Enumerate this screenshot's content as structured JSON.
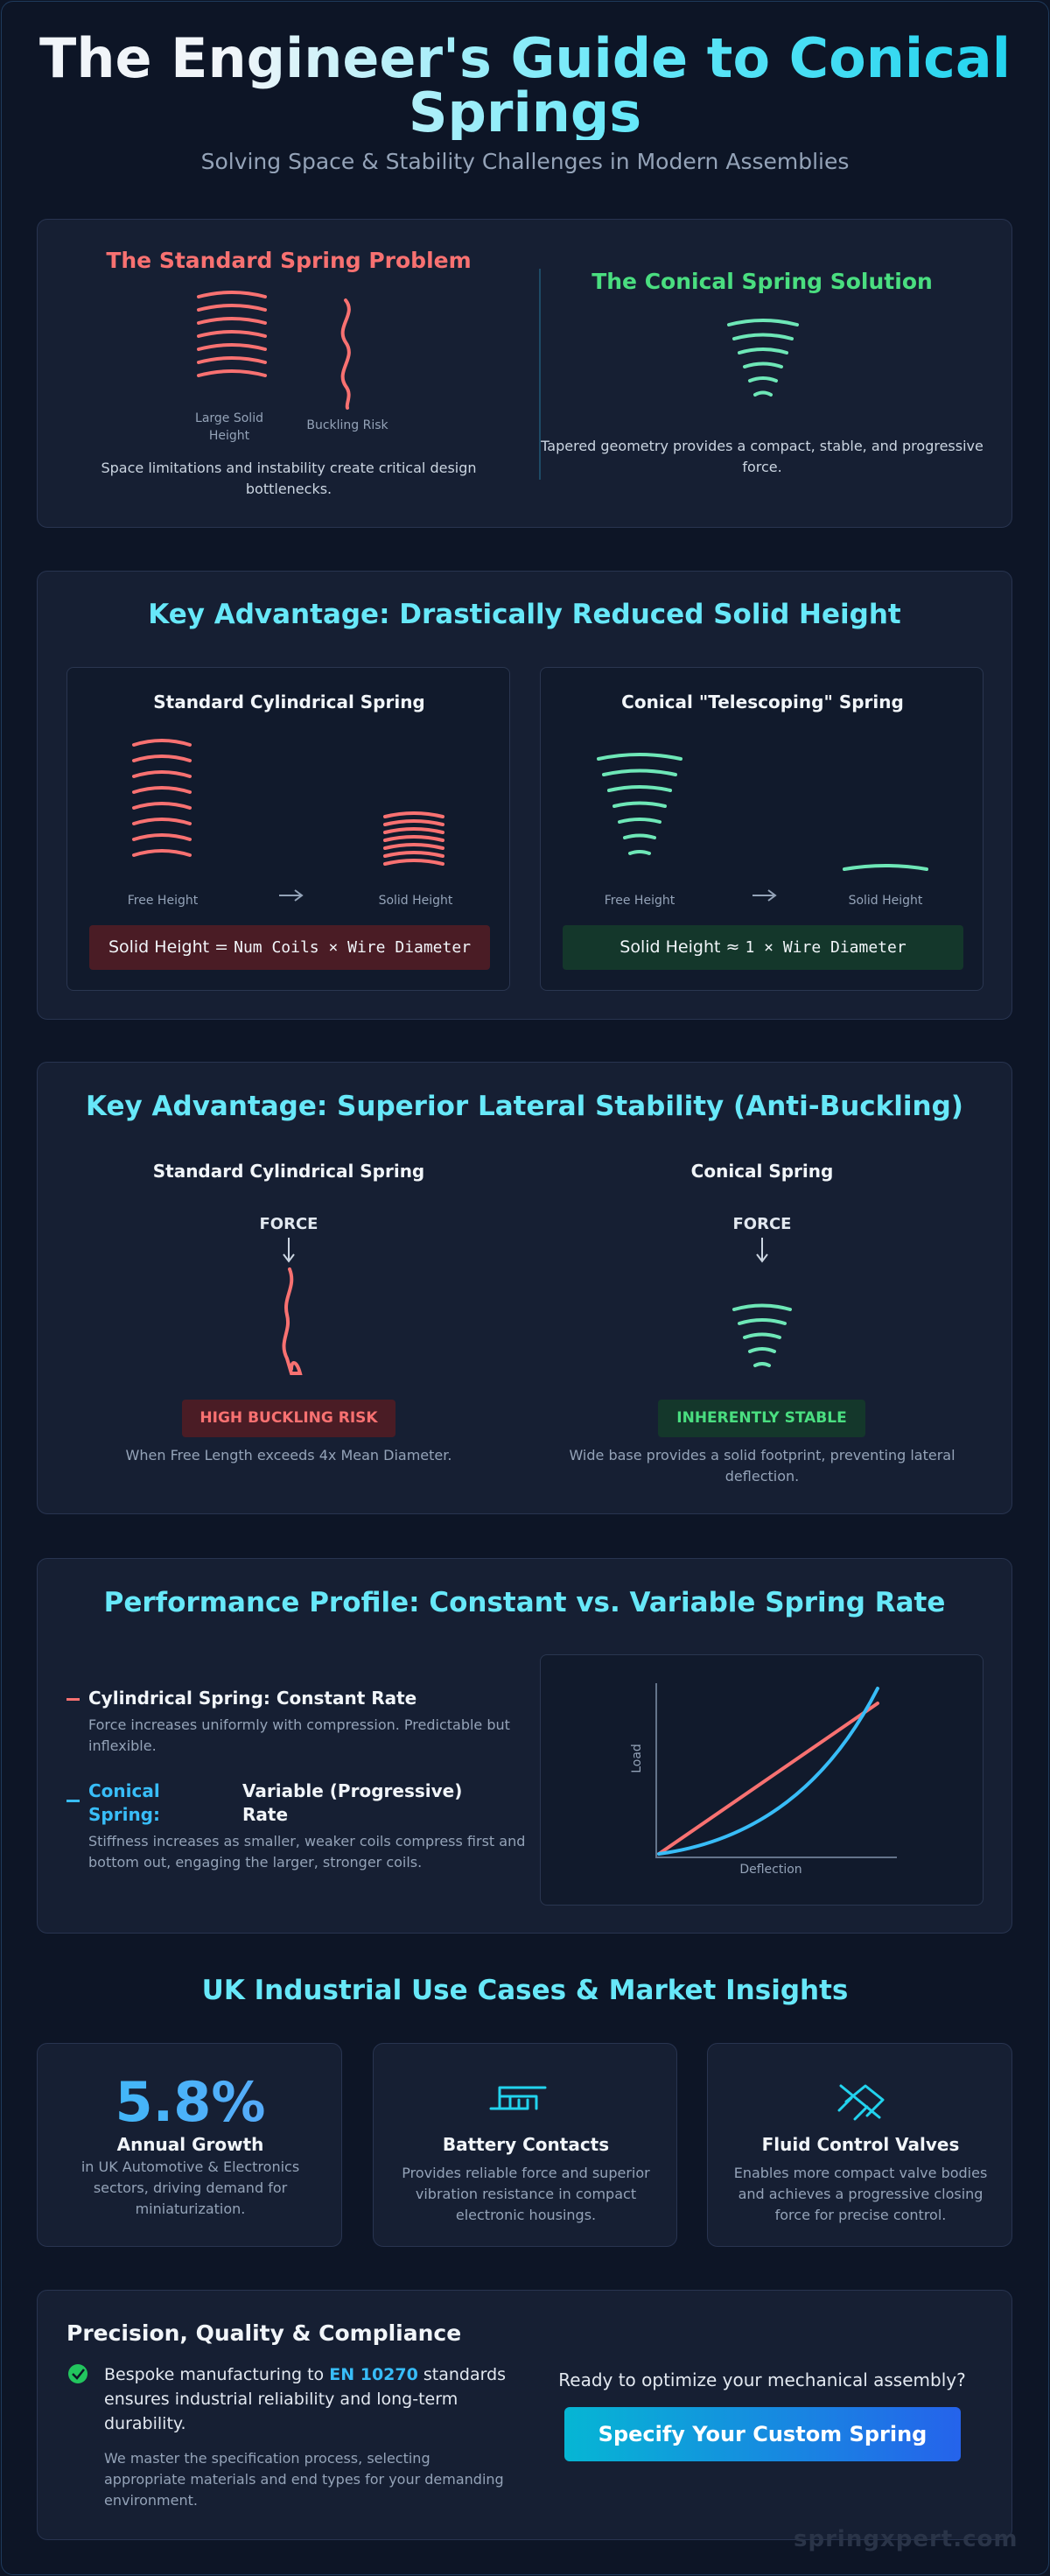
{
  "header": {
    "title": "The Engineer's Guide to Conical Springs",
    "subtitle": "Solving Space & Stability Challenges in Modern Assemblies"
  },
  "intro": {
    "problem": {
      "title": "The Standard Spring Problem",
      "icon_labels": [
        "Large Solid Height",
        "Buckling Risk"
      ],
      "text": "Space limitations and instability create critical design bottlenecks."
    },
    "solution": {
      "title": "The Conical Spring Solution",
      "text": "Tapered geometry provides a compact, stable, and progressive force."
    }
  },
  "solid_height": {
    "title": "Key Advantage: Drastically Reduced Solid Height",
    "panels": [
      {
        "title": "Standard Cylindrical Spring",
        "free_label": "Free Height",
        "solid_label": "Solid Height",
        "formula_label": "Solid Height =",
        "formula": "Num Coils × Wire Diameter"
      },
      {
        "title": "Conical \"Telescoping\" Spring",
        "free_label": "Free Height",
        "solid_label": "Solid Height",
        "formula_label": "Solid Height ≈",
        "formula": "1 × Wire Diameter"
      }
    ]
  },
  "stability": {
    "title": "Key Advantage: Superior Lateral Stability (Anti-Buckling)",
    "panels": [
      {
        "title": "Standard Cylindrical Spring",
        "force_label": "FORCE",
        "badge": "HIGH BUCKLING RISK",
        "text": "When Free Length exceeds 4x Mean Diameter."
      },
      {
        "title": "Conical Spring",
        "force_label": "FORCE",
        "badge": "INHERENTLY STABLE",
        "text": "Wide base provides a solid footprint, preventing lateral deflection."
      }
    ]
  },
  "rate": {
    "title": "Performance Profile: Constant vs. Variable Spring Rate",
    "items": [
      {
        "name": "Cylindrical Spring:",
        "rate": "Constant Rate",
        "text": "Force increases uniformly with compression. Predictable but inflexible."
      },
      {
        "name": "Conical Spring:",
        "rate": "Variable (Progressive) Rate",
        "text": "Stiffness increases as smaller, weaker coils compress first and bottom out, engaging the larger, stronger coils."
      }
    ],
    "graph": {
      "y_label": "Load",
      "x_label": "Deflection"
    }
  },
  "market": {
    "title": "UK Industrial Use Cases & Market Insights",
    "cards": [
      {
        "stat": "5.8%",
        "title": "Annual Growth",
        "text": "in UK Automotive & Electronics sectors, driving demand for miniaturization."
      },
      {
        "title": "Battery Contacts",
        "text": "Provides reliable force and superior vibration resistance in compact electronic housings."
      },
      {
        "title": "Fluid Control Valves",
        "text": "Enables more compact valve bodies and achieves a progressive closing force for precise control."
      }
    ]
  },
  "compliance": {
    "title": "Precision, Quality & Compliance",
    "check_text": [
      "Bespoke manufacturing to",
      "EN 10270",
      "standards ensures industrial reliability and long-term durability."
    ],
    "note": "We master the specification process, selecting appropriate materials and end types for your demanding environment.",
    "cta_prompt": "Ready to optimize your mechanical assembly?",
    "cta_button": "Specify Your Custom Spring"
  },
  "footer": {
    "watermark": "springxpert.com"
  }
}
